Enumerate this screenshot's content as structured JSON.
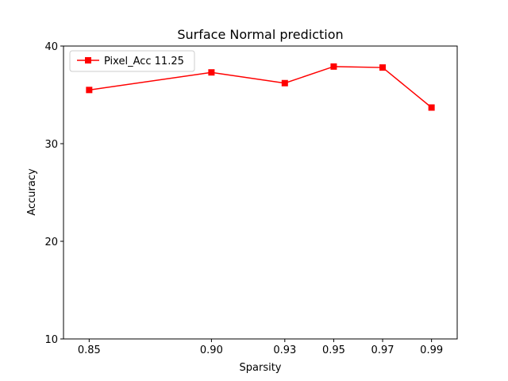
{
  "chart_data": {
    "type": "line",
    "title": "Surface Normal prediction",
    "xlabel": "Sparsity",
    "ylabel": "Accuracy",
    "x": [
      "0.85",
      "0.90",
      "0.93",
      "0.95",
      "0.97",
      "0.99"
    ],
    "x_values": [
      0.85,
      0.9,
      0.93,
      0.95,
      0.97,
      0.99
    ],
    "yticks": [
      "10",
      "20",
      "30",
      "40"
    ],
    "ytick_values": [
      10,
      20,
      30,
      40
    ],
    "ylim": [
      10,
      40
    ],
    "grid": false,
    "legend_position": "top-left",
    "series": [
      {
        "name": "Pixel_Acc 11.25",
        "color": "#ff0000",
        "marker": "square",
        "values": [
          35.5,
          37.3,
          36.2,
          37.9,
          37.8,
          33.7
        ]
      }
    ]
  }
}
